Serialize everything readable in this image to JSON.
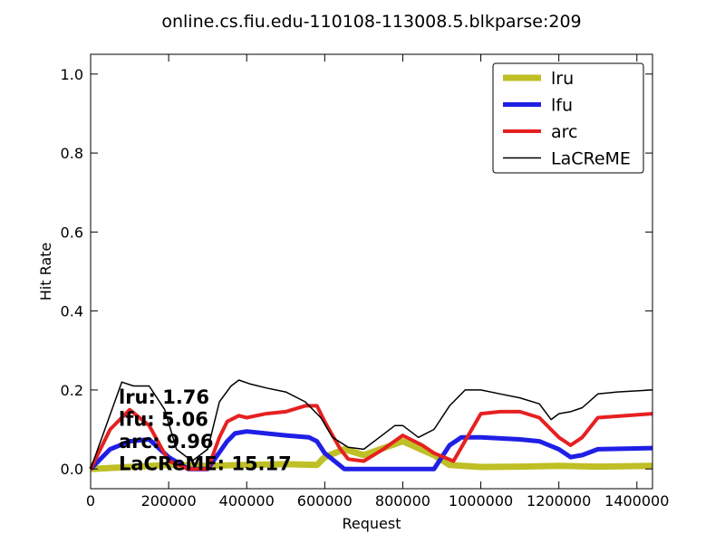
{
  "chart_data": {
    "type": "line",
    "title": "online.cs.fiu.edu-110108-113008.5.blkparse:209",
    "xlabel": "Request",
    "ylabel": "Hit Rate",
    "xlim": [
      0,
      1440000
    ],
    "ylim": [
      -0.05,
      1.05
    ],
    "x_ticks": [
      0,
      200000,
      400000,
      600000,
      800000,
      1000000,
      1200000,
      1400000
    ],
    "y_ticks": [
      0.0,
      0.2,
      0.4,
      0.6,
      0.8,
      1.0
    ],
    "x_tick_labels": [
      "0",
      "200000",
      "400000",
      "600000",
      "800000",
      "1000000",
      "1200000",
      "1400000"
    ],
    "y_tick_labels": [
      "0.0",
      "0.2",
      "0.4",
      "0.6",
      "0.8",
      "1.0"
    ],
    "grid": false,
    "legend_position": "top-right",
    "series": [
      {
        "name": "lru",
        "color": "#bfbf26",
        "x": [
          0,
          100000,
          200000,
          300000,
          400000,
          500000,
          580000,
          600000,
          650000,
          700000,
          800000,
          880000,
          920000,
          1000000,
          1100000,
          1200000,
          1300000,
          1440000
        ],
        "y": [
          0.0,
          0.005,
          0.01,
          0.008,
          0.01,
          0.012,
          0.01,
          0.03,
          0.05,
          0.035,
          0.07,
          0.035,
          0.01,
          0.005,
          0.006,
          0.008,
          0.006,
          0.008
        ]
      },
      {
        "name": "lfu",
        "color": "#1f1fe6",
        "x": [
          0,
          50000,
          100000,
          150000,
          200000,
          250000,
          300000,
          350000,
          370000,
          400000,
          500000,
          560000,
          580000,
          600000,
          650000,
          700000,
          800000,
          880000,
          920000,
          950000,
          1000000,
          1100000,
          1150000,
          1200000,
          1230000,
          1260000,
          1300000,
          1440000
        ],
        "y": [
          0.0,
          0.05,
          0.07,
          0.075,
          0.03,
          0.0,
          0.0,
          0.07,
          0.09,
          0.095,
          0.085,
          0.08,
          0.07,
          0.04,
          0.0,
          0.0,
          0.0,
          0.0,
          0.06,
          0.08,
          0.08,
          0.075,
          0.07,
          0.05,
          0.03,
          0.035,
          0.05,
          0.053
        ]
      },
      {
        "name": "arc",
        "color": "#e62020",
        "x": [
          0,
          50000,
          100000,
          150000,
          200000,
          250000,
          300000,
          330000,
          350000,
          380000,
          400000,
          450000,
          500000,
          550000,
          580000,
          600000,
          640000,
          660000,
          700000,
          750000,
          800000,
          850000,
          880000,
          930000,
          1000000,
          1050000,
          1100000,
          1150000,
          1200000,
          1230000,
          1260000,
          1300000,
          1440000
        ],
        "y": [
          0.0,
          0.1,
          0.15,
          0.11,
          0.02,
          0.0,
          0.0,
          0.08,
          0.12,
          0.135,
          0.13,
          0.14,
          0.145,
          0.16,
          0.16,
          0.12,
          0.05,
          0.025,
          0.02,
          0.05,
          0.085,
          0.06,
          0.04,
          0.02,
          0.14,
          0.145,
          0.145,
          0.13,
          0.08,
          0.06,
          0.08,
          0.13,
          0.14
        ]
      },
      {
        "name": "LaCReME",
        "color": "#000000",
        "x": [
          0,
          40000,
          80000,
          110000,
          150000,
          190000,
          220000,
          260000,
          300000,
          330000,
          360000,
          380000,
          410000,
          450000,
          500000,
          550000,
          590000,
          620000,
          660000,
          700000,
          740000,
          780000,
          800000,
          840000,
          880000,
          920000,
          960000,
          1000000,
          1050000,
          1100000,
          1150000,
          1180000,
          1200000,
          1230000,
          1260000,
          1300000,
          1350000,
          1440000
        ],
        "y": [
          0.0,
          0.11,
          0.22,
          0.21,
          0.21,
          0.15,
          0.05,
          0.02,
          0.05,
          0.17,
          0.21,
          0.225,
          0.215,
          0.205,
          0.195,
          0.17,
          0.13,
          0.08,
          0.055,
          0.05,
          0.08,
          0.11,
          0.11,
          0.08,
          0.1,
          0.16,
          0.2,
          0.2,
          0.19,
          0.18,
          0.165,
          0.125,
          0.14,
          0.145,
          0.155,
          0.19,
          0.195,
          0.2
        ]
      }
    ],
    "annotations": [
      {
        "label": "lru:",
        "value": "1.76"
      },
      {
        "label": "lfu:",
        "value": "5.06"
      },
      {
        "label": "arc:",
        "value": "9.96"
      },
      {
        "label": "LaCReME:",
        "value": "15.17"
      }
    ]
  }
}
